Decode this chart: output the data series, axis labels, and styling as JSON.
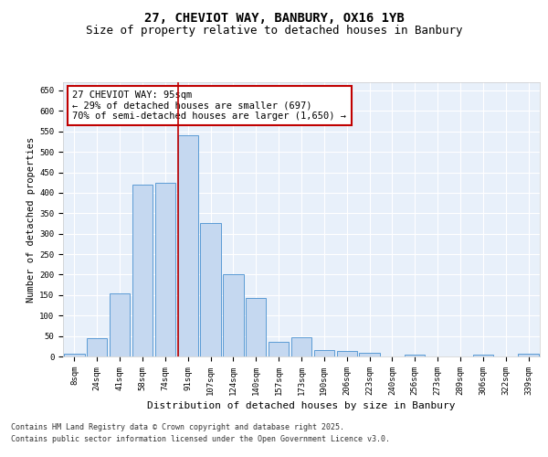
{
  "title_line1": "27, CHEVIOT WAY, BANBURY, OX16 1YB",
  "title_line2": "Size of property relative to detached houses in Banbury",
  "xlabel": "Distribution of detached houses by size in Banbury",
  "ylabel": "Number of detached properties",
  "categories": [
    "8sqm",
    "24sqm",
    "41sqm",
    "58sqm",
    "74sqm",
    "91sqm",
    "107sqm",
    "124sqm",
    "140sqm",
    "157sqm",
    "173sqm",
    "190sqm",
    "206sqm",
    "223sqm",
    "240sqm",
    "256sqm",
    "273sqm",
    "289sqm",
    "306sqm",
    "322sqm",
    "339sqm"
  ],
  "values": [
    7,
    45,
    155,
    420,
    425,
    540,
    325,
    202,
    143,
    35,
    48,
    15,
    13,
    8,
    0,
    5,
    0,
    0,
    5,
    0,
    7
  ],
  "bar_color": "#c5d8f0",
  "bar_edge_color": "#5b9bd5",
  "vline_color": "#c00000",
  "annotation_text": "27 CHEVIOT WAY: 95sqm\n← 29% of detached houses are smaller (697)\n70% of semi-detached houses are larger (1,650) →",
  "annotation_box_color": "#c00000",
  "ylim": [
    0,
    670
  ],
  "yticks": [
    0,
    50,
    100,
    150,
    200,
    250,
    300,
    350,
    400,
    450,
    500,
    550,
    600,
    650
  ],
  "background_color": "#e8f0fa",
  "grid_color": "#ffffff",
  "footer_line1": "Contains HM Land Registry data © Crown copyright and database right 2025.",
  "footer_line2": "Contains public sector information licensed under the Open Government Licence v3.0.",
  "title_fontsize": 10,
  "subtitle_fontsize": 9,
  "label_fontsize": 7.5,
  "tick_fontsize": 6.5,
  "footer_fontsize": 6
}
